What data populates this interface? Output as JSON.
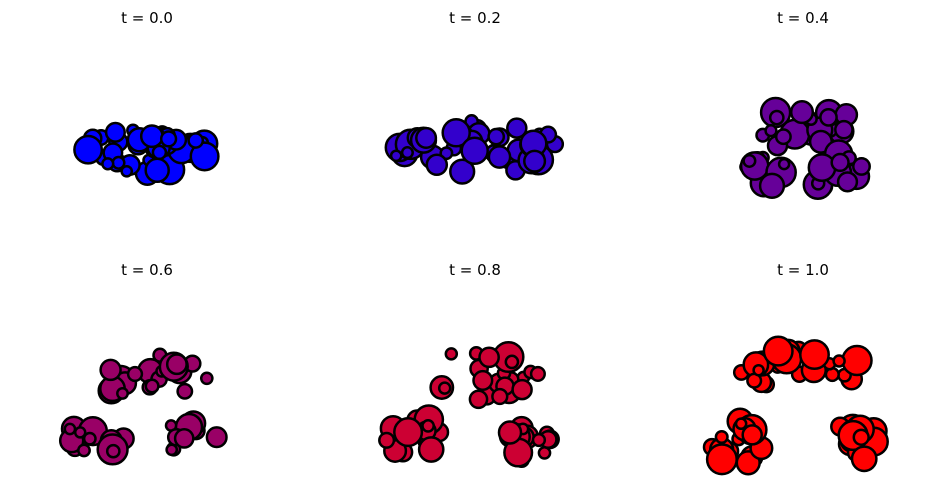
{
  "chart_data": [
    {
      "type": "scatter",
      "title": "t = 0.0",
      "t": 0.0,
      "fill": "#0000ff",
      "marker_edge": "#000000",
      "axes": "off",
      "clusters": [
        {
          "cx": 0,
          "cy": 0,
          "rx": 1.9,
          "ry": 0.55,
          "n": 40,
          "seed": 11
        }
      ]
    },
    {
      "type": "scatter",
      "title": "t = 0.2",
      "t": 0.2,
      "fill": "#3300cc",
      "marker_edge": "#000000",
      "axes": "off",
      "clusters": [
        {
          "cx": 0,
          "cy": 0.05,
          "rx": 2.1,
          "ry": 0.85,
          "n": 42,
          "seed": 23
        }
      ]
    },
    {
      "type": "scatter",
      "title": "t = 0.4",
      "t": 0.4,
      "fill": "#660099",
      "marker_edge": "#000000",
      "axes": "off",
      "clusters": [
        {
          "cx": 0.1,
          "cy": 0.6,
          "rx": 1.3,
          "ry": 0.55,
          "n": 22,
          "seed": 31
        },
        {
          "cx": -1.0,
          "cy": -0.5,
          "rx": 0.7,
          "ry": 0.45,
          "n": 12,
          "seed": 37
        },
        {
          "cx": 0.9,
          "cy": -0.5,
          "rx": 0.75,
          "ry": 0.45,
          "n": 12,
          "seed": 41
        }
      ]
    },
    {
      "type": "scatter",
      "title": "t = 0.6",
      "t": 0.6,
      "fill": "#990066",
      "marker_edge": "#000000",
      "axes": "off",
      "clusters": [
        {
          "cx": 0.1,
          "cy": 0.7,
          "rx": 1.5,
          "ry": 0.6,
          "n": 22,
          "seed": 43
        },
        {
          "cx": -1.3,
          "cy": -0.85,
          "rx": 0.75,
          "ry": 0.5,
          "n": 13,
          "seed": 47
        },
        {
          "cx": 1.1,
          "cy": -0.85,
          "rx": 0.75,
          "ry": 0.45,
          "n": 13,
          "seed": 53
        }
      ]
    },
    {
      "type": "scatter",
      "title": "t = 0.8",
      "t": 0.8,
      "fill": "#cc0033",
      "marker_edge": "#000000",
      "axes": "off",
      "clusters": [
        {
          "cx": 0.1,
          "cy": 0.75,
          "rx": 1.5,
          "ry": 0.65,
          "n": 22,
          "seed": 59
        },
        {
          "cx": -1.4,
          "cy": -0.9,
          "rx": 0.85,
          "ry": 0.55,
          "n": 14,
          "seed": 61
        },
        {
          "cx": 1.2,
          "cy": -0.9,
          "rx": 0.8,
          "ry": 0.5,
          "n": 14,
          "seed": 67
        }
      ]
    },
    {
      "type": "scatter",
      "title": "t = 1.0",
      "t": 1.0,
      "fill": "#ff0000",
      "marker_edge": "#000000",
      "axes": "off",
      "clusters": [
        {
          "cx": 0.0,
          "cy": 0.8,
          "rx": 1.55,
          "ry": 0.65,
          "n": 22,
          "seed": 71
        },
        {
          "cx": -1.5,
          "cy": -0.95,
          "rx": 0.85,
          "ry": 0.55,
          "n": 15,
          "seed": 73
        },
        {
          "cx": 1.3,
          "cy": -0.95,
          "rx": 0.8,
          "ry": 0.5,
          "n": 15,
          "seed": 79
        }
      ]
    }
  ]
}
